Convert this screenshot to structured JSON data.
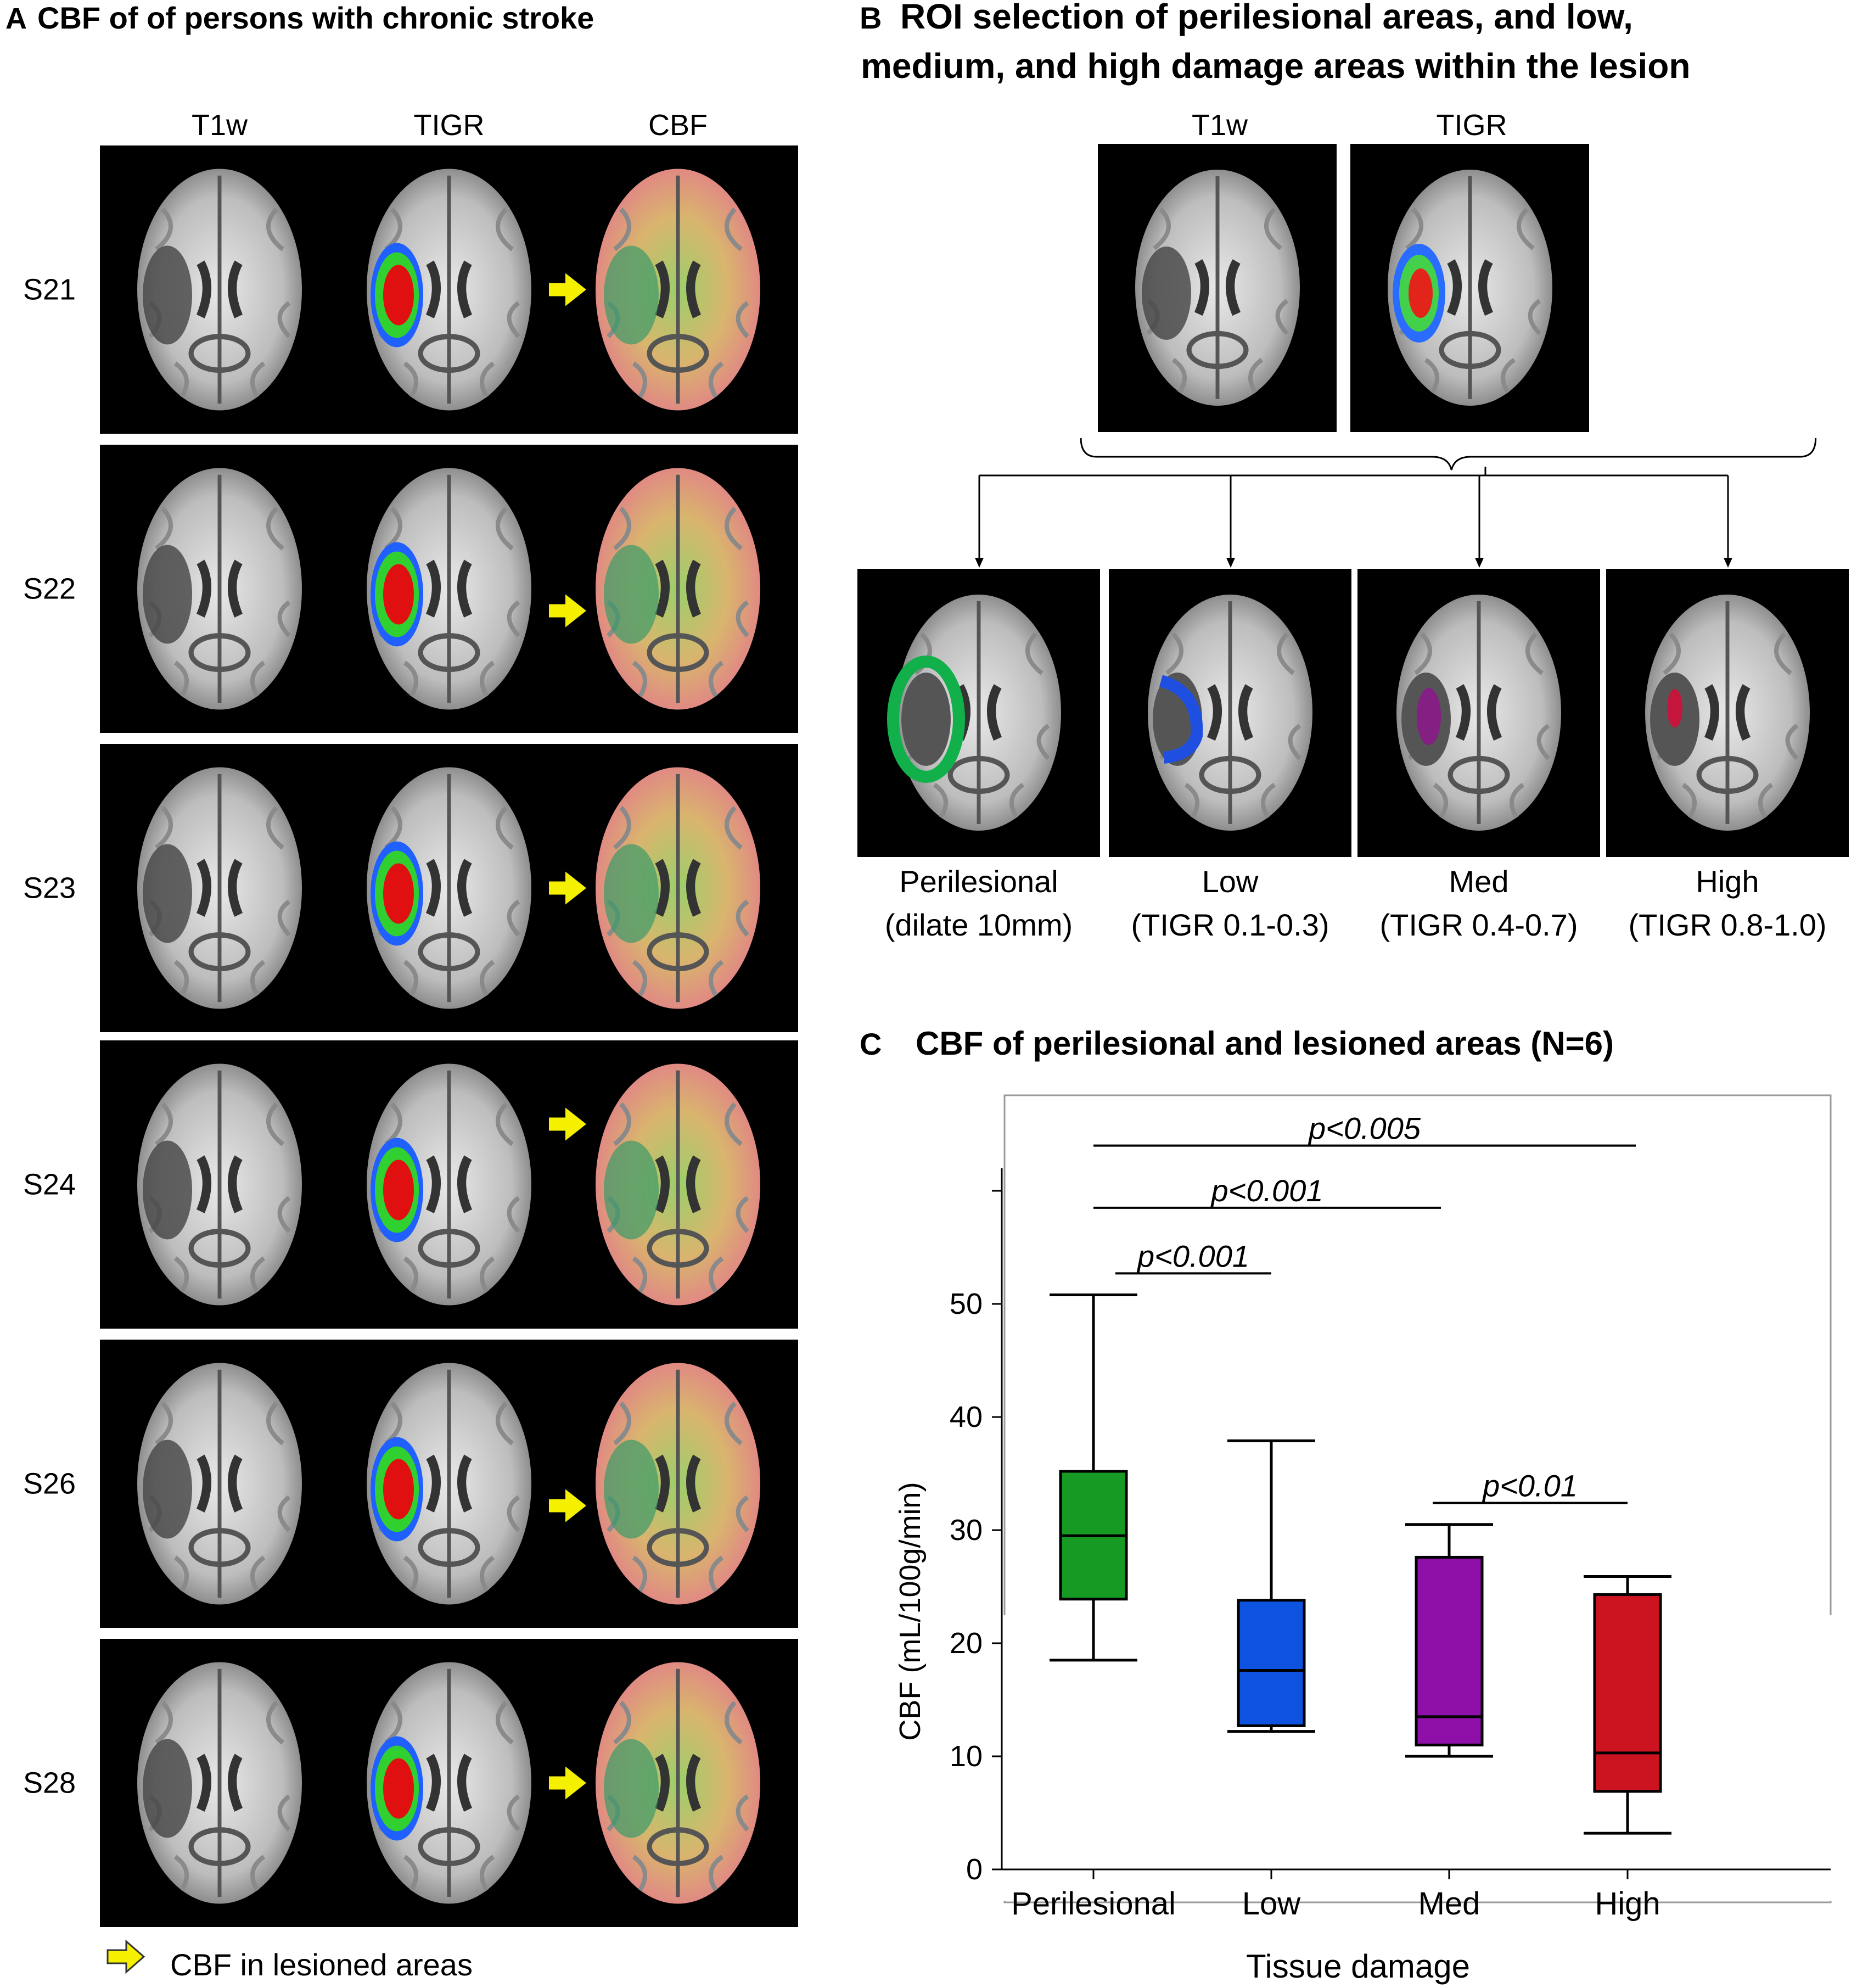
{
  "panel_a": {
    "letter": "A",
    "title": "CBF of of persons with chronic stroke",
    "columns": [
      "T1w",
      "TIGR",
      "CBF"
    ],
    "subjects": [
      "S21",
      "S22",
      "S23",
      "S24",
      "S26",
      "S28"
    ],
    "legend": "CBF in lesioned areas",
    "colors": {
      "panel_bg": "#000000",
      "arrow": "#f5f000",
      "tigr_high": "#e01010",
      "tigr_mid": "#30d030",
      "tigr_low": "#2060ff",
      "cbf_red": "#e4828a",
      "cbf_green": "#8fcf6a"
    }
  },
  "panel_b": {
    "letter": "B",
    "title_line1": "ROI selection of perilesional areas, and low,",
    "title_line2": "medium, and high damage areas within the lesion",
    "top_labels": [
      "T1w",
      "TIGR"
    ],
    "rois": [
      {
        "name": "Perilesional",
        "sub": "(dilate 10mm)",
        "color": "#12b04a"
      },
      {
        "name": "Low",
        "sub": "(TIGR 0.1-0.3)",
        "color": "#1e4fe0"
      },
      {
        "name": "Med",
        "sub": "(TIGR 0.4-0.7)",
        "color": "#8a1a8a"
      },
      {
        "name": "High",
        "sub": "(TIGR 0.8-1.0)",
        "color": "#d0103a"
      }
    ]
  },
  "panel_c": {
    "letter": "C",
    "title": "CBF of perilesional and lesioned areas (N=6)"
  },
  "chart_data": {
    "type": "box",
    "title": "CBF of perilesional and lesioned areas (N=6)",
    "xlabel": "Tissue damage",
    "ylabel": "CBF (mL/100g/min)",
    "ylim": [
      0,
      60
    ],
    "yticks": [
      0,
      10,
      20,
      30,
      40,
      50
    ],
    "categories": [
      "Perilesional",
      "Low",
      "Med",
      "High"
    ],
    "boxes": [
      {
        "name": "Perilesional",
        "min": 18.5,
        "q1": 23.9,
        "median": 29.5,
        "q3": 35.2,
        "max": 50.8,
        "color": "#169a24"
      },
      {
        "name": "Low",
        "min": 12.2,
        "q1": 12.7,
        "median": 17.6,
        "q3": 23.8,
        "max": 37.9,
        "color": "#0e53e0"
      },
      {
        "name": "Med",
        "min": 10.0,
        "q1": 11.0,
        "median": 13.5,
        "q3": 27.6,
        "max": 30.5,
        "color": "#8e10a8"
      },
      {
        "name": "High",
        "min": 3.2,
        "q1": 6.9,
        "median": 10.3,
        "q3": 24.3,
        "max": 25.9,
        "color": "#cc1421"
      }
    ],
    "significance": [
      {
        "from": "Perilesional",
        "to": "High",
        "label": "p<0.005",
        "y": 64
      },
      {
        "from": "Perilesional",
        "to": "Med",
        "label": "p<0.001",
        "y": 58.5
      },
      {
        "from": "Perilesional",
        "to": "Low",
        "label": "p<0.001",
        "y": 52.7
      },
      {
        "from": "Med",
        "to": "High",
        "label": "p<0.01",
        "y": 32.4
      }
    ]
  }
}
